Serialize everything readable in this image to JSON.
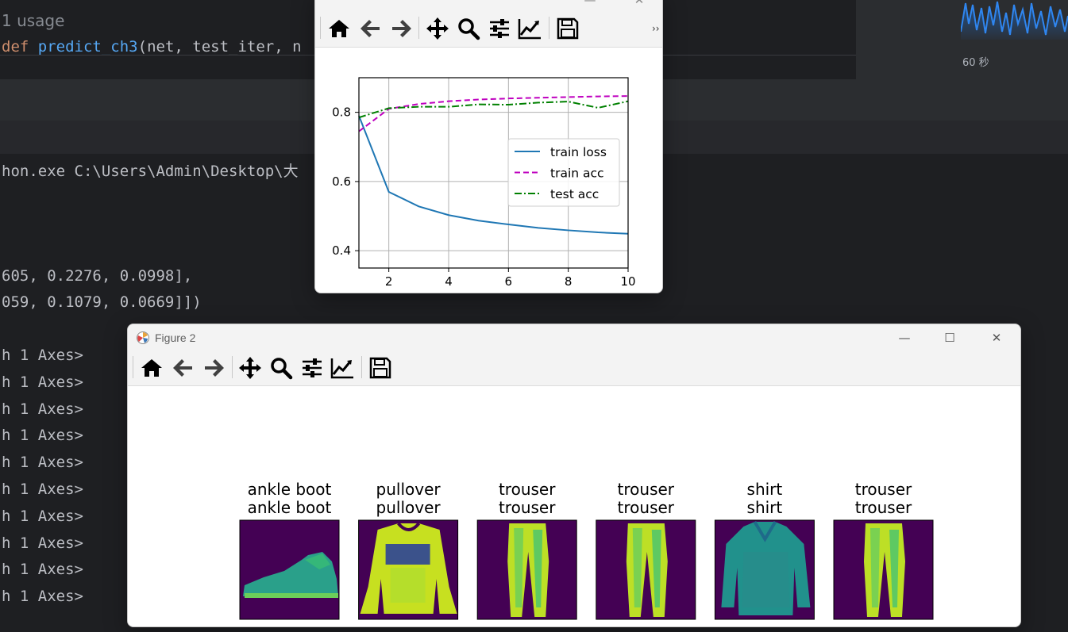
{
  "ide": {
    "usage_hint": "1 usage",
    "code_def_keyword": "def",
    "code_function_name": "predict_ch3",
    "code_params": "(net, test_iter, n",
    "monitor_label": "60 秒",
    "console_path_line": "hon.exe C:\\Users\\Admin\\Desktop\\大",
    "console_tensor_line_1": "605, 0.2276, 0.0998],",
    "console_tensor_line_2": "059, 0.1079, 0.0669]])",
    "console_axes_lines": [
      "h 1 Axes>",
      "h 1 Axes>",
      "h 1 Axes>",
      "h 1 Axes>",
      "h 1 Axes>",
      "h 1 Axes>",
      "h 1 Axes>",
      "h 1 Axes>",
      "h 1 Axes>",
      "h 1 Axes>"
    ]
  },
  "figure1": {
    "toolbar": {
      "more_label": "››",
      "icons": [
        "home-icon",
        "back-arrow-icon",
        "forward-arrow-icon",
        "pan-move-icon",
        "zoom-magnifier-icon",
        "configure-subplots-icon",
        "edit-axis-icon",
        "save-floppy-icon"
      ]
    }
  },
  "chart_data": {
    "type": "line",
    "title": "",
    "xlabel": "",
    "ylabel": "",
    "xlim": [
      1,
      10
    ],
    "ylim": [
      0.35,
      0.9
    ],
    "xticks": [
      2,
      4,
      6,
      8,
      10
    ],
    "yticks": [
      0.4,
      0.6,
      0.8
    ],
    "tick_labels_x": [
      "2",
      "4",
      "6",
      "8",
      "10"
    ],
    "tick_labels_y": [
      "0.4",
      "0.6",
      "0.8"
    ],
    "grid": true,
    "legend_position": "center-right",
    "x": [
      1,
      2,
      3,
      4,
      5,
      6,
      7,
      8,
      9,
      10
    ],
    "series": [
      {
        "name": "train loss",
        "color": "#1f77b4",
        "style": "solid",
        "values": [
          0.79,
          0.57,
          0.528,
          0.503,
          0.487,
          0.476,
          0.466,
          0.459,
          0.453,
          0.449
        ]
      },
      {
        "name": "train acc",
        "color": "#bf00bf",
        "style": "dashed",
        "values": [
          0.745,
          0.81,
          0.824,
          0.832,
          0.837,
          0.84,
          0.842,
          0.844,
          0.846,
          0.847
        ]
      },
      {
        "name": "test acc",
        "color": "#008000",
        "style": "dashdot",
        "values": [
          0.785,
          0.812,
          0.816,
          0.816,
          0.823,
          0.822,
          0.828,
          0.831,
          0.813,
          0.832
        ]
      }
    ]
  },
  "figure2": {
    "title": "Figure 2",
    "window_controls": {
      "minimize": "—",
      "maximize": "☐",
      "close": "✕"
    },
    "toolbar": {
      "icons": [
        "home-icon",
        "back-arrow-icon",
        "forward-arrow-icon",
        "pan-move-icon",
        "zoom-magnifier-icon",
        "configure-subplots-icon",
        "edit-axis-icon",
        "save-floppy-icon"
      ]
    },
    "images": [
      {
        "true_label": "ankle boot",
        "pred_label": "ankle boot",
        "item": "ankle-boot"
      },
      {
        "true_label": "pullover",
        "pred_label": "pullover",
        "item": "pullover"
      },
      {
        "true_label": "trouser",
        "pred_label": "trouser",
        "item": "trouser"
      },
      {
        "true_label": "trouser",
        "pred_label": "trouser",
        "item": "trouser"
      },
      {
        "true_label": "shirt",
        "pred_label": "shirt",
        "item": "shirt"
      },
      {
        "true_label": "trouser",
        "pred_label": "trouser",
        "item": "trouser"
      }
    ]
  },
  "colors": {
    "ide_bg": "#1e1f22",
    "keyword": "#cf8e6d",
    "function": "#56a8f5",
    "console_text": "#bcbec4",
    "viridis_dark": "#440154",
    "viridis_mid": "#21918c",
    "viridis_bright": "#fde725"
  }
}
